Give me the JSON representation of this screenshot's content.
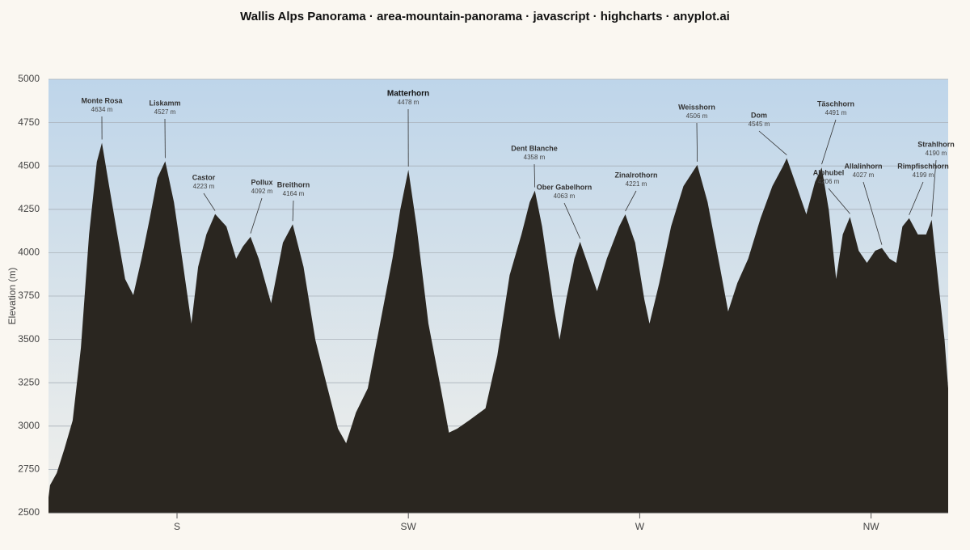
{
  "chart_data": {
    "type": "area",
    "title": "Wallis Alps Panorama · area-mountain-panorama · javascript · highcharts · anyplot.ai",
    "y_label": "Elevation (m)",
    "color": "#2a2620",
    "sky_top": "#bed5ea",
    "sky_bottom": "#f1f0eb",
    "grid": true,
    "xlim": [
      155,
      330
    ],
    "xticks": [
      {
        "value": 180,
        "label": "S"
      },
      {
        "value": 225,
        "label": "SW"
      },
      {
        "value": 270,
        "label": "W"
      },
      {
        "value": 315,
        "label": "NW"
      }
    ],
    "ylim": [
      2500,
      5000
    ],
    "yticks": [
      2500,
      2750,
      3000,
      3250,
      3500,
      3750,
      4000,
      4250,
      4500,
      4750,
      5000
    ],
    "x": [
      155.0,
      155.3,
      156.6,
      158.1,
      159.7,
      161.3,
      162.9,
      164.4,
      165.4,
      166.8,
      168.4,
      169.9,
      171.5,
      173.1,
      174.7,
      176.2,
      177.7,
      179.4,
      181.0,
      182.8,
      184.1,
      185.7,
      187.4,
      189.6,
      191.5,
      192.8,
      194.3,
      195.9,
      198.3,
      200.6,
      202.5,
      204.6,
      206.9,
      209.3,
      211.3,
      212.9,
      214.8,
      217.1,
      219.5,
      221.9,
      223.4,
      225.0,
      226.6,
      228.9,
      231.3,
      232.9,
      234.5,
      236.8,
      240.0,
      242.3,
      244.7,
      247.0,
      248.6,
      249.6,
      251.0,
      253.3,
      254.4,
      255.7,
      257.3,
      258.4,
      260.1,
      261.7,
      263.6,
      266.0,
      267.2,
      269.1,
      270.9,
      271.9,
      273.8,
      276.1,
      278.5,
      281.2,
      283.2,
      285.6,
      287.2,
      289.0,
      291.1,
      293.5,
      295.8,
      297.9,
      298.6,
      300.5,
      302.4,
      304.1,
      305.4,
      306.8,
      308.2,
      309.5,
      310.9,
      312.6,
      314.2,
      315.8,
      317.1,
      318.6,
      319.9,
      321.1,
      322.4,
      324.1,
      325.7,
      326.8,
      328.1,
      329.3,
      330.0
    ],
    "values": [
      2589,
      2659,
      2729,
      2869,
      3032,
      3452,
      4105,
      4524,
      4634,
      4384,
      4105,
      3848,
      3755,
      3965,
      4198,
      4431,
      4527,
      4291,
      3965,
      3591,
      3918,
      4105,
      4223,
      4151,
      3965,
      4035,
      4092,
      3965,
      3708,
      4058,
      4164,
      3918,
      3498,
      3218,
      2985,
      2901,
      3078,
      3218,
      3591,
      3965,
      4244,
      4478,
      4151,
      3591,
      3218,
      2962,
      2985,
      3032,
      3102,
      3405,
      3871,
      4105,
      4291,
      4358,
      4151,
      3685,
      3498,
      3731,
      3965,
      4063,
      3918,
      3778,
      3965,
      4151,
      4221,
      4058,
      3731,
      3591,
      3825,
      4151,
      4384,
      4506,
      4291,
      3918,
      3661,
      3825,
      3965,
      4198,
      4384,
      4500,
      4545,
      4384,
      4221,
      4408,
      4491,
      4244,
      3848,
      4105,
      4206,
      4011,
      3941,
      4011,
      4027,
      3965,
      3941,
      4151,
      4199,
      4105,
      4105,
      4190,
      3825,
      3498,
      3218
    ],
    "peaks": [
      {
        "name": "Monte Rosa",
        "x": 165.4,
        "elevation": 4634,
        "label": "4634 m"
      },
      {
        "name": "Liskamm",
        "x": 177.7,
        "elevation": 4527,
        "label": "4527 m"
      },
      {
        "name": "Castor",
        "x": 187.4,
        "elevation": 4223,
        "label": "4223 m"
      },
      {
        "name": "Pollux",
        "x": 194.3,
        "elevation": 4092,
        "label": "4092 m"
      },
      {
        "name": "Breithorn",
        "x": 202.5,
        "elevation": 4164,
        "label": "4164 m"
      },
      {
        "name": "Matterhorn",
        "x": 225.0,
        "elevation": 4478,
        "label": "4478 m"
      },
      {
        "name": "Dent Blanche",
        "x": 249.6,
        "elevation": 4358,
        "label": "4358 m"
      },
      {
        "name": "Ober Gabelhorn",
        "x": 258.4,
        "elevation": 4063,
        "label": "4063 m"
      },
      {
        "name": "Zinalrothorn",
        "x": 267.2,
        "elevation": 4221,
        "label": "4221 m"
      },
      {
        "name": "Weisshorn",
        "x": 281.2,
        "elevation": 4506,
        "label": "4506 m"
      },
      {
        "name": "Dom",
        "x": 298.6,
        "elevation": 4545,
        "label": "4545 m"
      },
      {
        "name": "Täschhorn",
        "x": 305.4,
        "elevation": 4491,
        "label": "4491 m"
      },
      {
        "name": "Alphubel",
        "x": 310.9,
        "elevation": 4206,
        "label": "4206 m"
      },
      {
        "name": "Allalinhorn",
        "x": 317.1,
        "elevation": 4027,
        "label": "4027 m"
      },
      {
        "name": "Rimpfischhorn",
        "x": 322.4,
        "elevation": 4199,
        "label": "4199 m"
      },
      {
        "name": "Strahlhorn",
        "x": 326.8,
        "elevation": 4190,
        "label": "4190 m"
      }
    ]
  }
}
